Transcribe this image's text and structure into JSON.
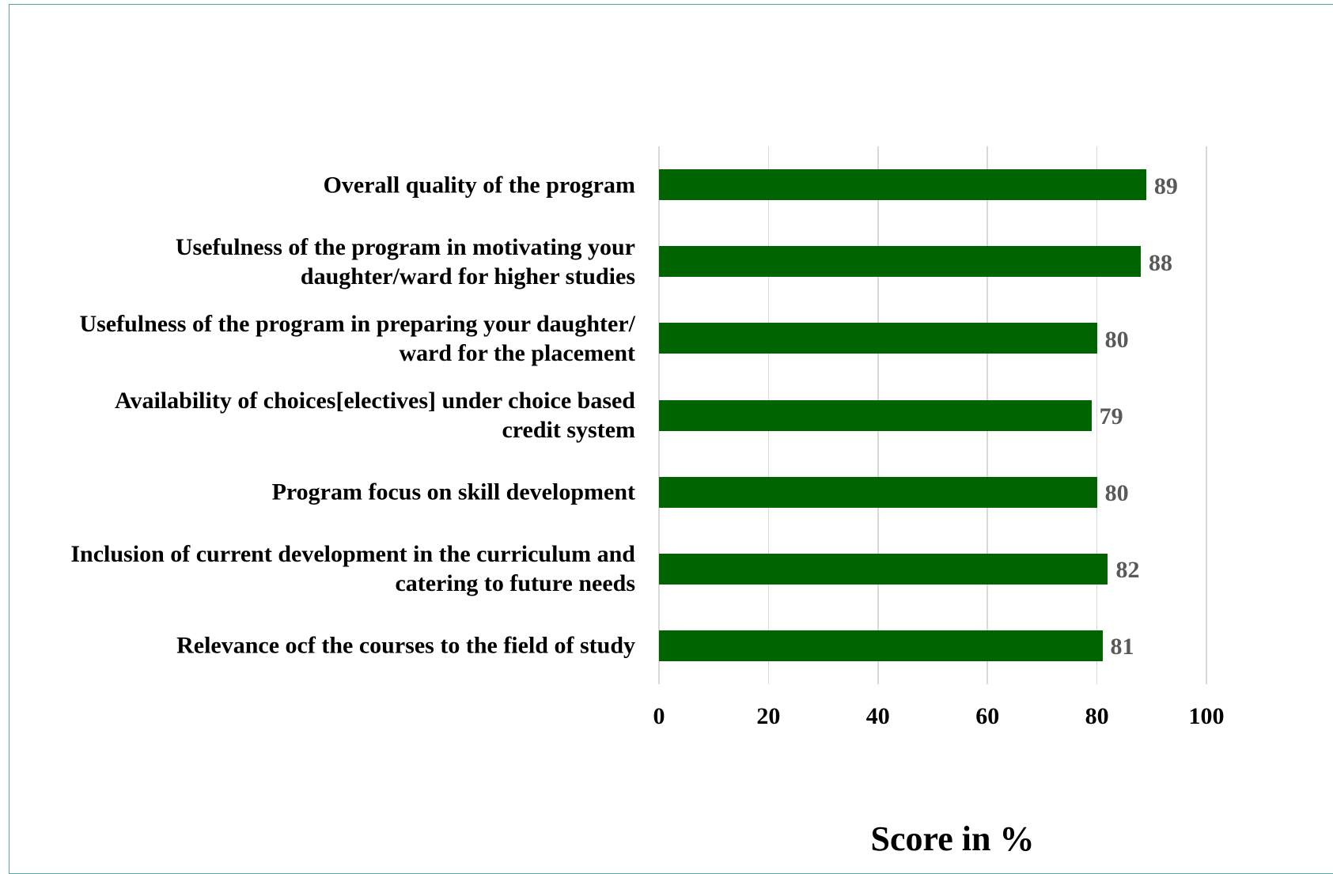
{
  "chart_data": {
    "type": "bar",
    "orientation": "horizontal",
    "categories": [
      "Overall quality of the program",
      "Usefulness of the program in motivating your daughter/ward for higher studies",
      "Usefulness of the program in preparing your daughter/ ward for the placement",
      "Availability of choices[electives] under choice based credit system",
      "Program focus on skill development",
      "Inclusion of current development in the curriculum and catering to future needs",
      "Relevance ocf the courses to the field of study"
    ],
    "values": [
      89,
      88,
      80,
      79,
      80,
      82,
      81
    ],
    "color": "#006400",
    "xlabel": "Score in %",
    "xlim": [
      0,
      100
    ],
    "xticks": [
      0,
      20,
      40,
      60,
      80,
      100
    ],
    "grid": true
  }
}
